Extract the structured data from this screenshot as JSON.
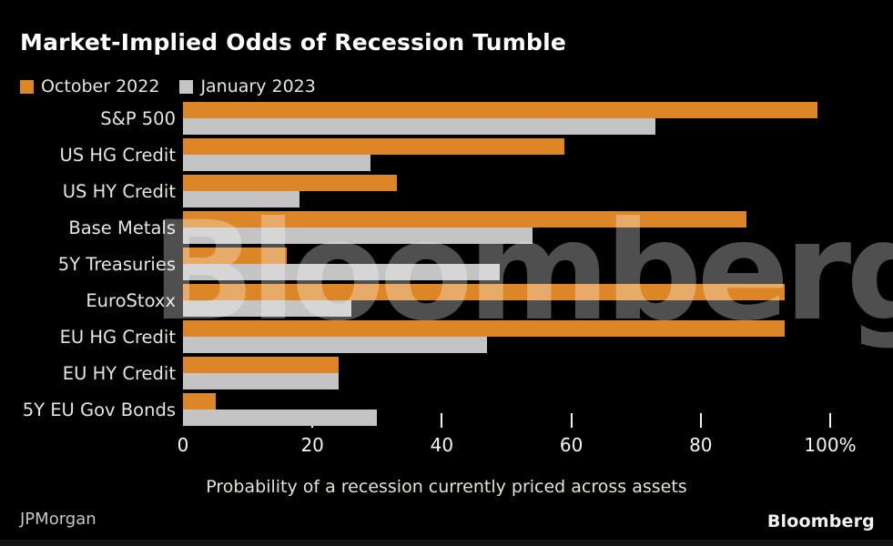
{
  "title": "Market-Implied Odds of Recession Tumble",
  "legend": [
    {
      "label": "October 2022",
      "color": "#dd8627"
    },
    {
      "label": "January 2023",
      "color": "#c4c4c4"
    }
  ],
  "chart_data": {
    "type": "bar",
    "orientation": "horizontal",
    "title": "Market-Implied Odds of Recession Tumble",
    "xlabel": "Probability of a recession currently priced across assets",
    "ylabel": "",
    "xlim": [
      0,
      100
    ],
    "xticks": [
      0,
      20,
      40,
      60,
      80,
      100
    ],
    "xtick_labels": [
      "0",
      "20",
      "40",
      "60",
      "80",
      "100%"
    ],
    "grid": false,
    "legend_position": "top-left",
    "categories": [
      "S&P 500",
      "US HG Credit",
      "US HY Credit",
      "Base Metals",
      "5Y Treasuries",
      "EuroStoxx",
      "EU HG Credit",
      "EU HY Credit",
      "5Y EU Gov Bonds"
    ],
    "series": [
      {
        "name": "October 2022",
        "color": "#dd8627",
        "values": [
          98,
          59,
          33,
          87,
          16,
          93,
          93,
          24,
          5
        ]
      },
      {
        "name": "January 2023",
        "color": "#c4c4c4",
        "values": [
          73,
          29,
          18,
          54,
          49,
          26,
          47,
          24,
          30
        ]
      }
    ]
  },
  "watermark": "Bloomberg",
  "source": "JPMorgan",
  "branding": "Bloomberg",
  "colors": {
    "background": "#000000",
    "october_bar": "#dd8627",
    "january_bar": "#c4c4c4",
    "title_text": "#ffffff",
    "label_text": "#e8e5de",
    "tick_text": "#f5f5f5",
    "source_text": "#c9c6c0"
  }
}
